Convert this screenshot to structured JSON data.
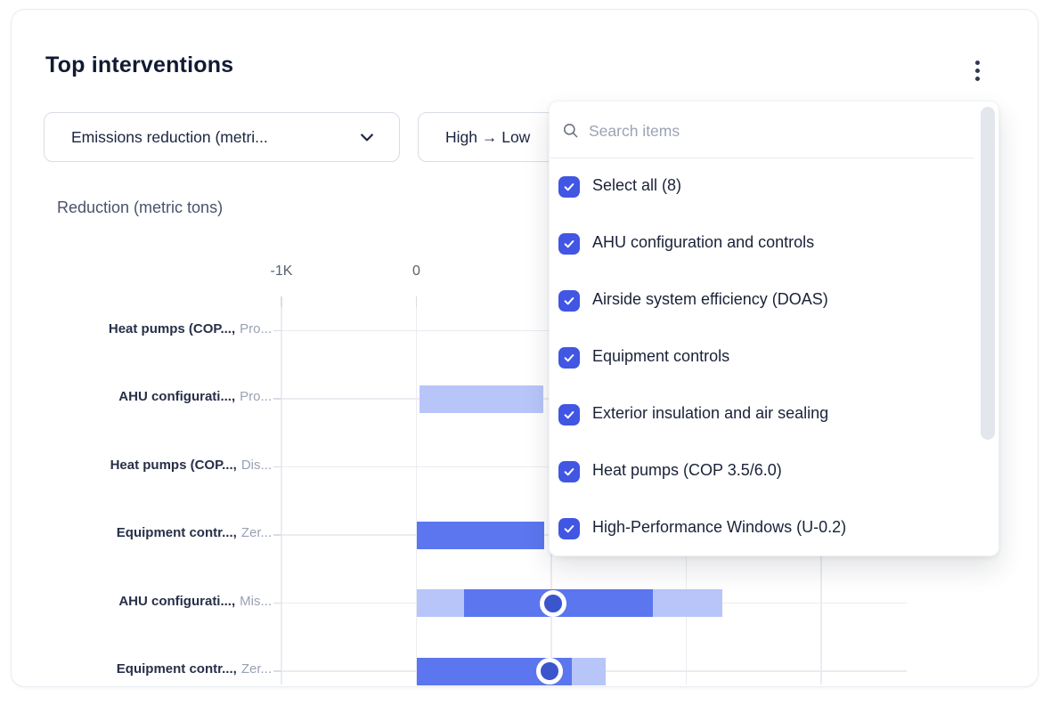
{
  "card": {
    "title": "Top interventions",
    "menu_icon": "kebab-menu-icon"
  },
  "filters": {
    "metric_dropdown": {
      "value": "Emissions reduction (metri...",
      "icon": "chevron-down-icon"
    },
    "sort_dropdown": {
      "value": "High → Low"
    }
  },
  "dropdown_panel": {
    "search": {
      "placeholder": "Search items",
      "icon": "search-icon"
    },
    "items": [
      {
        "label": "Select all (8)",
        "checked": true
      },
      {
        "label": "AHU configuration and controls",
        "checked": true
      },
      {
        "label": "Airside system efficiency (DOAS)",
        "checked": true
      },
      {
        "label": "Equipment controls",
        "checked": true
      },
      {
        "label": "Exterior insulation and air sealing",
        "checked": true
      },
      {
        "label": "Heat pumps (COP 3.5/6.0)",
        "checked": true
      },
      {
        "label": "High-Performance Windows (U-0.2)",
        "checked": true
      }
    ]
  },
  "chart_data": {
    "type": "bar",
    "orientation": "horizontal",
    "axis_title": "Reduction (metric tons)",
    "unit": "metric tons",
    "x_ticks": [
      {
        "value": -1000,
        "label": "-1K"
      },
      {
        "value": 0,
        "label": "0"
      }
    ],
    "x_gridlines": [
      -1000,
      0,
      1000,
      2000,
      3000
    ],
    "xlim": [
      -1000,
      3650
    ],
    "grid": true,
    "note": "bars partially hidden behind open filter dropdown panel; rows 1 and 3 show no visible bar",
    "rows": [
      {
        "bold": "Heat pumps (COP...,",
        "muted": "Pro...",
        "segments": [],
        "marker": null
      },
      {
        "bold": "AHU configurati...,",
        "muted": "Pro...",
        "segments": [
          {
            "from": 25,
            "to": 940,
            "shade": "light",
            "end_hidden_by_panel": true
          }
        ],
        "marker": null
      },
      {
        "bold": "Heat pumps (COP...,",
        "muted": "Dis...",
        "segments": [],
        "marker": null
      },
      {
        "bold": "Equipment contr...,",
        "muted": "Zer...",
        "segments": [
          {
            "from": 5,
            "to": 950,
            "shade": "dark",
            "end_hidden_by_panel": true
          }
        ],
        "marker": null
      },
      {
        "bold": "AHU configurati...,",
        "muted": "Mis...",
        "segments": [
          {
            "from": 5,
            "to": 355,
            "shade": "light"
          },
          {
            "from": 355,
            "to": 1755,
            "shade": "dark"
          },
          {
            "from": 1755,
            "to": 2265,
            "shade": "light"
          }
        ],
        "marker": 1010
      },
      {
        "bold": "Equipment contr...,",
        "muted": "Zer...",
        "segments": [
          {
            "from": 5,
            "to": 1155,
            "shade": "dark"
          },
          {
            "from": 1155,
            "to": 1400,
            "shade": "light"
          }
        ],
        "marker": 990
      }
    ]
  },
  "colors": {
    "bar_dark": "#5b76ee",
    "bar_light": "#b8c5f8",
    "marker_fill": "#3b55cd",
    "marker_ring": "#ffffff",
    "checkbox_blue": "#4156e3",
    "grid": "#eaecf1",
    "tick": "#d9dde3",
    "title_text": "#111a33",
    "label_bold": "#272f49",
    "label_muted": "#99a1b4",
    "axis_text": "#596172",
    "scrollbar_thumb": "#e3e6ec"
  }
}
